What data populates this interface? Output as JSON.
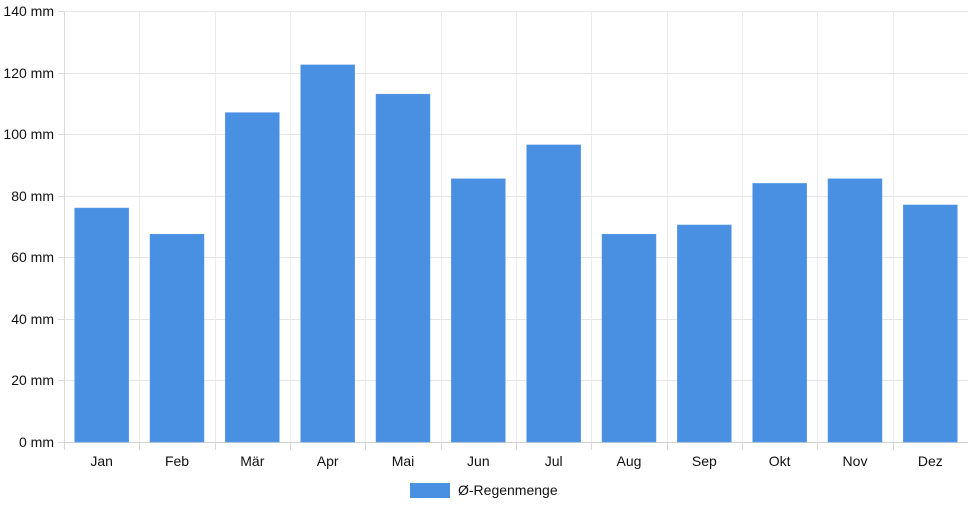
{
  "chart_data": {
    "type": "bar",
    "title": "",
    "xlabel": "",
    "ylabel": "",
    "categories": [
      "Jan",
      "Feb",
      "Mär",
      "Apr",
      "Mai",
      "Jun",
      "Jul",
      "Aug",
      "Sep",
      "Okt",
      "Nov",
      "Dez"
    ],
    "series": [
      {
        "name": "Ø-Regenmenge",
        "color": "#4a90e2",
        "values": [
          76,
          67.5,
          107,
          122.5,
          113,
          85.5,
          96.5,
          67.5,
          70.5,
          84,
          85.5,
          77
        ]
      }
    ],
    "ylim": [
      0,
      140
    ],
    "y_ticks": [
      0,
      20,
      40,
      60,
      80,
      100,
      120,
      140
    ],
    "y_tick_labels": [
      "0 mm",
      "20 mm",
      "40 mm",
      "60 mm",
      "80 mm",
      "100 mm",
      "120 mm",
      "140 mm"
    ],
    "grid": true,
    "legend": {
      "position": "bottom-center"
    }
  }
}
